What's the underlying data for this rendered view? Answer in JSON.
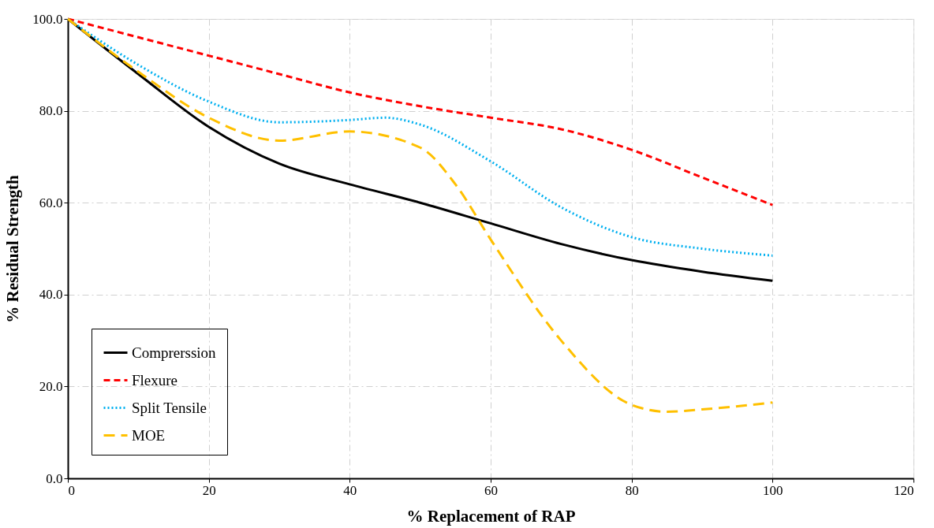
{
  "chart_data": {
    "type": "line",
    "xlabel": "%  Replacement of RAP",
    "ylabel": "% Residual Strength",
    "xlim": [
      0,
      120
    ],
    "xticks": [
      0,
      20,
      40,
      60,
      80,
      100,
      120
    ],
    "ylim": [
      0,
      100
    ],
    "yticks": [
      {
        "value": 0,
        "label": "0.0"
      },
      {
        "value": 20,
        "label": "20.0"
      },
      {
        "value": 40,
        "label": "40.0"
      },
      {
        "value": 60,
        "label": "60.0"
      },
      {
        "value": 80,
        "label": "80.0"
      },
      {
        "value": 100,
        "label": "100.0"
      }
    ],
    "grid": true,
    "legend": "bottom left",
    "marker": "none",
    "series": [
      {
        "name": "Comprerssion",
        "color": "#000000",
        "line_style": "solid",
        "x": [
          0,
          10,
          20,
          30,
          40,
          50,
          60,
          70,
          80,
          90,
          100
        ],
        "values": [
          100,
          88,
          76.5,
          68.5,
          64,
          60,
          55.5,
          51,
          47.5,
          45,
          43
        ]
      },
      {
        "name": "Flexure",
        "color": "#ff0000",
        "line_style": "dashed",
        "x": [
          0,
          10,
          20,
          30,
          40,
          50,
          60,
          70,
          80,
          90,
          100
        ],
        "values": [
          100,
          96,
          92,
          88,
          84,
          81,
          78.5,
          76,
          71.5,
          65.5,
          59.5
        ]
      },
      {
        "name": "Split Tensile",
        "color": "#00b0f0",
        "line_style": "dotted",
        "x": [
          0,
          10,
          20,
          30,
          40,
          45,
          50,
          60,
          70,
          80,
          90,
          100
        ],
        "values": [
          100,
          90,
          82,
          77.5,
          78,
          78.5,
          77,
          69,
          59,
          52.5,
          50,
          48.5
        ]
      },
      {
        "name": "MOE",
        "color": "#ffc000",
        "line_style": "dashed",
        "x": [
          0,
          10,
          20,
          30,
          40,
          50,
          55,
          60,
          70,
          80,
          85,
          90,
          100
        ],
        "values": [
          100,
          88.5,
          78.5,
          73.5,
          75.5,
          72,
          64,
          52,
          30,
          16,
          14.5,
          15,
          16.5
        ]
      }
    ]
  }
}
